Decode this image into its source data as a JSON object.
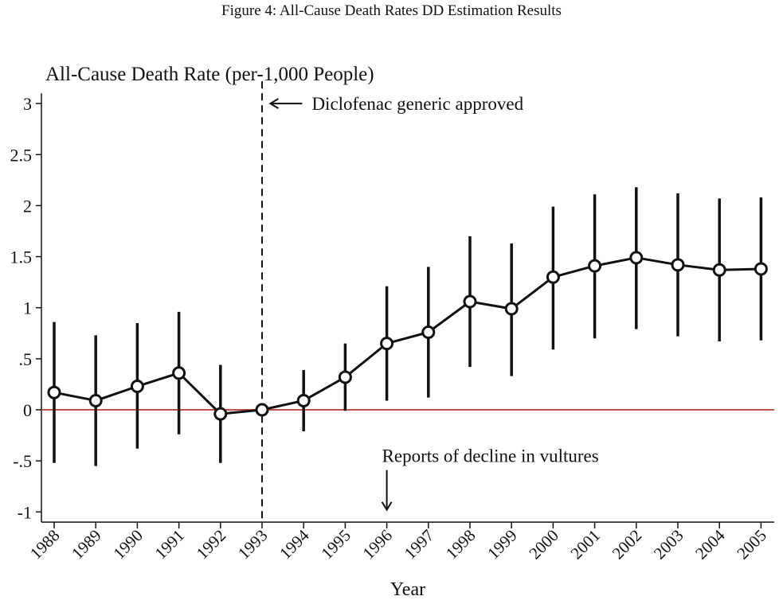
{
  "figure_title": "Figure 4:  All-Cause Death Rates DD Estimation Results",
  "chart_data": {
    "type": "line",
    "title": "All-Cause Death Rate (per-1,000 People)",
    "xlabel": "Year",
    "ylabel": "",
    "x": [
      1988,
      1989,
      1990,
      1991,
      1992,
      1993,
      1994,
      1995,
      1996,
      1997,
      1998,
      1999,
      2000,
      2001,
      2002,
      2003,
      2004,
      2005
    ],
    "series": [
      {
        "values": [
          0.17,
          0.09,
          0.23,
          0.36,
          -0.04,
          0.0,
          0.09,
          0.32,
          0.65,
          0.76,
          1.06,
          0.99,
          1.3,
          1.41,
          1.49,
          1.42,
          1.37,
          1.38
        ],
        "ci_lower": [
          -0.52,
          -0.55,
          -0.38,
          -0.24,
          -0.52,
          0.0,
          -0.21,
          -0.01,
          0.09,
          0.12,
          0.42,
          0.33,
          0.59,
          0.7,
          0.79,
          0.72,
          0.67,
          0.68
        ],
        "ci_upper": [
          0.86,
          0.73,
          0.85,
          0.96,
          0.44,
          0.0,
          0.39,
          0.65,
          1.21,
          1.4,
          1.7,
          1.63,
          1.99,
          2.11,
          2.18,
          2.12,
          2.07,
          2.08
        ]
      }
    ],
    "ylim": [
      -1.1,
      3.1
    ],
    "yticks": [
      -1,
      -0.5,
      0,
      0.5,
      1,
      1.5,
      2,
      2.5,
      3
    ],
    "ytick_labels": [
      "-1",
      "-.5",
      "0",
      ".5",
      "1",
      "1.5",
      "2",
      "2.5",
      "3"
    ],
    "reference_line": {
      "y": 0,
      "color": "#c0504d"
    },
    "vertical_line": {
      "x": 1993,
      "style": "dashed"
    },
    "annotations": [
      {
        "text": "Diclofenac generic approved",
        "x": 1993.2,
        "y": 3.0,
        "arrow": "left"
      },
      {
        "text": "Reports of decline in vultures",
        "x": 1996,
        "y": -0.45,
        "arrow": "down"
      }
    ],
    "grid": false
  }
}
